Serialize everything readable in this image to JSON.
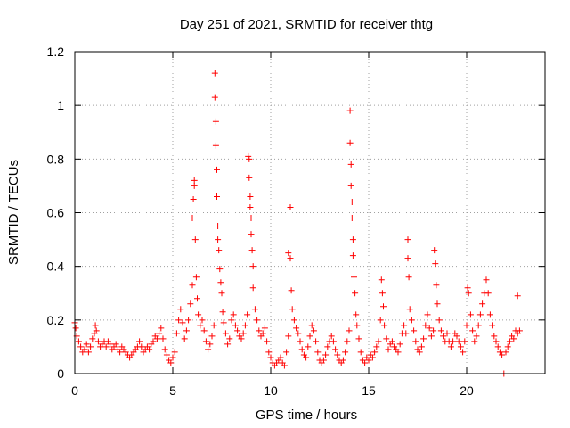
{
  "chart_data": {
    "type": "scatter",
    "title": "Day 251 of 2021, SRMTID for receiver thtg",
    "xlabel": "GPS time / hours",
    "ylabel": "SRMTID / TECUs",
    "xlim": [
      0,
      24
    ],
    "ylim": [
      0,
      1.2
    ],
    "xticks": [
      0,
      5,
      10,
      15,
      20
    ],
    "xtick_labels": [
      "0",
      "5",
      "10",
      "15",
      "20"
    ],
    "yticks": [
      0,
      0.2,
      0.4,
      0.6,
      0.8,
      1,
      1.2
    ],
    "ytick_labels": [
      "0",
      "0.2",
      "0.4",
      "0.6",
      "0.8",
      "1",
      "1.2"
    ],
    "grid": true,
    "marker": "plus",
    "color": "#ff0000",
    "series": [
      {
        "name": "SRMTID",
        "points": [
          [
            0.0,
            0.19
          ],
          [
            0.05,
            0.17
          ],
          [
            0.1,
            0.14
          ],
          [
            0.2,
            0.12
          ],
          [
            0.3,
            0.1
          ],
          [
            0.4,
            0.08
          ],
          [
            0.5,
            0.09
          ],
          [
            0.6,
            0.11
          ],
          [
            0.7,
            0.08
          ],
          [
            0.8,
            0.1
          ],
          [
            0.9,
            0.13
          ],
          [
            1.0,
            0.15
          ],
          [
            1.05,
            0.18
          ],
          [
            1.1,
            0.16
          ],
          [
            1.2,
            0.12
          ],
          [
            1.3,
            0.1
          ],
          [
            1.4,
            0.11
          ],
          [
            1.5,
            0.12
          ],
          [
            1.6,
            0.1
          ],
          [
            1.7,
            0.12
          ],
          [
            1.8,
            0.11
          ],
          [
            1.9,
            0.09
          ],
          [
            2.0,
            0.1
          ],
          [
            2.1,
            0.11
          ],
          [
            2.2,
            0.09
          ],
          [
            2.3,
            0.08
          ],
          [
            2.4,
            0.1
          ],
          [
            2.5,
            0.09
          ],
          [
            2.6,
            0.08
          ],
          [
            2.7,
            0.07
          ],
          [
            2.8,
            0.06
          ],
          [
            2.9,
            0.07
          ],
          [
            3.0,
            0.08
          ],
          [
            3.1,
            0.09
          ],
          [
            3.2,
            0.1
          ],
          [
            3.3,
            0.12
          ],
          [
            3.4,
            0.1
          ],
          [
            3.5,
            0.08
          ],
          [
            3.6,
            0.09
          ],
          [
            3.7,
            0.1
          ],
          [
            3.8,
            0.09
          ],
          [
            3.9,
            0.11
          ],
          [
            4.0,
            0.12
          ],
          [
            4.1,
            0.14
          ],
          [
            4.2,
            0.13
          ],
          [
            4.3,
            0.15
          ],
          [
            4.4,
            0.17
          ],
          [
            4.5,
            0.13
          ],
          [
            4.6,
            0.09
          ],
          [
            4.7,
            0.07
          ],
          [
            4.8,
            0.05
          ],
          [
            4.9,
            0.04
          ],
          [
            5.0,
            0.06
          ],
          [
            5.1,
            0.08
          ],
          [
            5.2,
            0.15
          ],
          [
            5.3,
            0.2
          ],
          [
            5.4,
            0.24
          ],
          [
            5.5,
            0.19
          ],
          [
            5.6,
            0.13
          ],
          [
            5.7,
            0.16
          ],
          [
            5.8,
            0.2
          ],
          [
            5.9,
            0.26
          ],
          [
            6.0,
            0.33
          ],
          [
            6.0,
            0.58
          ],
          [
            6.05,
            0.65
          ],
          [
            6.1,
            0.7
          ],
          [
            6.1,
            0.72
          ],
          [
            6.15,
            0.5
          ],
          [
            6.2,
            0.36
          ],
          [
            6.25,
            0.28
          ],
          [
            6.3,
            0.22
          ],
          [
            6.4,
            0.18
          ],
          [
            6.5,
            0.2
          ],
          [
            6.6,
            0.16
          ],
          [
            6.7,
            0.12
          ],
          [
            6.8,
            0.09
          ],
          [
            6.9,
            0.11
          ],
          [
            7.0,
            0.14
          ],
          [
            7.1,
            0.18
          ],
          [
            7.15,
            1.12
          ],
          [
            7.15,
            1.03
          ],
          [
            7.2,
            0.94
          ],
          [
            7.2,
            0.85
          ],
          [
            7.25,
            0.76
          ],
          [
            7.25,
            0.66
          ],
          [
            7.3,
            0.55
          ],
          [
            7.3,
            0.5
          ],
          [
            7.35,
            0.46
          ],
          [
            7.4,
            0.39
          ],
          [
            7.45,
            0.34
          ],
          [
            7.5,
            0.3
          ],
          [
            7.55,
            0.23
          ],
          [
            7.6,
            0.19
          ],
          [
            7.7,
            0.15
          ],
          [
            7.8,
            0.11
          ],
          [
            7.9,
            0.13
          ],
          [
            8.0,
            0.2
          ],
          [
            8.1,
            0.22
          ],
          [
            8.2,
            0.18
          ],
          [
            8.3,
            0.16
          ],
          [
            8.4,
            0.14
          ],
          [
            8.5,
            0.13
          ],
          [
            8.6,
            0.15
          ],
          [
            8.7,
            0.18
          ],
          [
            8.8,
            0.22
          ],
          [
            8.85,
            0.81
          ],
          [
            8.9,
            0.8
          ],
          [
            8.9,
            0.73
          ],
          [
            8.95,
            0.66
          ],
          [
            8.95,
            0.62
          ],
          [
            9.0,
            0.58
          ],
          [
            9.0,
            0.52
          ],
          [
            9.05,
            0.46
          ],
          [
            9.1,
            0.4
          ],
          [
            9.1,
            0.32
          ],
          [
            9.2,
            0.24
          ],
          [
            9.3,
            0.2
          ],
          [
            9.4,
            0.16
          ],
          [
            9.5,
            0.14
          ],
          [
            9.6,
            0.15
          ],
          [
            9.7,
            0.17
          ],
          [
            9.8,
            0.12
          ],
          [
            9.9,
            0.08
          ],
          [
            10.0,
            0.06
          ],
          [
            10.1,
            0.04
          ],
          [
            10.2,
            0.03
          ],
          [
            10.3,
            0.04
          ],
          [
            10.4,
            0.05
          ],
          [
            10.5,
            0.06
          ],
          [
            10.6,
            0.04
          ],
          [
            10.7,
            0.03
          ],
          [
            10.8,
            0.08
          ],
          [
            10.9,
            0.14
          ],
          [
            10.9,
            0.45
          ],
          [
            11.0,
            0.43
          ],
          [
            11.0,
            0.62
          ],
          [
            11.05,
            0.31
          ],
          [
            11.1,
            0.24
          ],
          [
            11.2,
            0.2
          ],
          [
            11.3,
            0.17
          ],
          [
            11.4,
            0.15
          ],
          [
            11.5,
            0.12
          ],
          [
            11.6,
            0.09
          ],
          [
            11.7,
            0.07
          ],
          [
            11.8,
            0.06
          ],
          [
            11.9,
            0.1
          ],
          [
            12.0,
            0.14
          ],
          [
            12.1,
            0.18
          ],
          [
            12.2,
            0.16
          ],
          [
            12.3,
            0.12
          ],
          [
            12.4,
            0.08
          ],
          [
            12.5,
            0.05
          ],
          [
            12.6,
            0.04
          ],
          [
            12.7,
            0.05
          ],
          [
            12.8,
            0.07
          ],
          [
            12.9,
            0.1
          ],
          [
            13.0,
            0.12
          ],
          [
            13.1,
            0.14
          ],
          [
            13.2,
            0.12
          ],
          [
            13.3,
            0.09
          ],
          [
            13.4,
            0.07
          ],
          [
            13.5,
            0.05
          ],
          [
            13.6,
            0.04
          ],
          [
            13.7,
            0.05
          ],
          [
            13.8,
            0.08
          ],
          [
            13.9,
            0.12
          ],
          [
            14.0,
            0.16
          ],
          [
            14.05,
            0.98
          ],
          [
            14.05,
            0.86
          ],
          [
            14.1,
            0.78
          ],
          [
            14.1,
            0.7
          ],
          [
            14.15,
            0.64
          ],
          [
            14.15,
            0.58
          ],
          [
            14.2,
            0.5
          ],
          [
            14.2,
            0.44
          ],
          [
            14.25,
            0.36
          ],
          [
            14.3,
            0.3
          ],
          [
            14.35,
            0.22
          ],
          [
            14.4,
            0.18
          ],
          [
            14.5,
            0.13
          ],
          [
            14.6,
            0.08
          ],
          [
            14.7,
            0.05
          ],
          [
            14.8,
            0.04
          ],
          [
            14.9,
            0.06
          ],
          [
            15.0,
            0.05
          ],
          [
            15.1,
            0.07
          ],
          [
            15.2,
            0.06
          ],
          [
            15.3,
            0.08
          ],
          [
            15.4,
            0.1
          ],
          [
            15.5,
            0.12
          ],
          [
            15.6,
            0.2
          ],
          [
            15.65,
            0.35
          ],
          [
            15.7,
            0.3
          ],
          [
            15.75,
            0.25
          ],
          [
            15.8,
            0.18
          ],
          [
            15.9,
            0.13
          ],
          [
            16.0,
            0.09
          ],
          [
            16.1,
            0.11
          ],
          [
            16.2,
            0.12
          ],
          [
            16.3,
            0.1
          ],
          [
            16.4,
            0.09
          ],
          [
            16.5,
            0.08
          ],
          [
            16.6,
            0.11
          ],
          [
            16.7,
            0.15
          ],
          [
            16.8,
            0.18
          ],
          [
            16.9,
            0.15
          ],
          [
            17.0,
            0.5
          ],
          [
            17.0,
            0.43
          ],
          [
            17.05,
            0.36
          ],
          [
            17.1,
            0.24
          ],
          [
            17.2,
            0.2
          ],
          [
            17.3,
            0.16
          ],
          [
            17.4,
            0.12
          ],
          [
            17.5,
            0.09
          ],
          [
            17.6,
            0.08
          ],
          [
            17.7,
            0.1
          ],
          [
            17.8,
            0.13
          ],
          [
            17.9,
            0.18
          ],
          [
            18.0,
            0.22
          ],
          [
            18.1,
            0.17
          ],
          [
            18.2,
            0.14
          ],
          [
            18.3,
            0.16
          ],
          [
            18.35,
            0.46
          ],
          [
            18.4,
            0.41
          ],
          [
            18.45,
            0.33
          ],
          [
            18.5,
            0.26
          ],
          [
            18.6,
            0.2
          ],
          [
            18.7,
            0.16
          ],
          [
            18.8,
            0.14
          ],
          [
            18.9,
            0.12
          ],
          [
            19.0,
            0.15
          ],
          [
            19.1,
            0.12
          ],
          [
            19.2,
            0.1
          ],
          [
            19.3,
            0.12
          ],
          [
            19.4,
            0.15
          ],
          [
            19.5,
            0.14
          ],
          [
            19.6,
            0.12
          ],
          [
            19.7,
            0.1
          ],
          [
            19.8,
            0.08
          ],
          [
            19.9,
            0.12
          ],
          [
            20.0,
            0.18
          ],
          [
            20.05,
            0.32
          ],
          [
            20.1,
            0.3
          ],
          [
            20.2,
            0.22
          ],
          [
            20.3,
            0.16
          ],
          [
            20.4,
            0.12
          ],
          [
            20.5,
            0.14
          ],
          [
            20.6,
            0.18
          ],
          [
            20.7,
            0.22
          ],
          [
            20.8,
            0.26
          ],
          [
            20.9,
            0.3
          ],
          [
            21.0,
            0.35
          ],
          [
            21.1,
            0.3
          ],
          [
            21.2,
            0.22
          ],
          [
            21.3,
            0.18
          ],
          [
            21.4,
            0.14
          ],
          [
            21.5,
            0.12
          ],
          [
            21.6,
            0.1
          ],
          [
            21.7,
            0.08
          ],
          [
            21.8,
            0.07
          ],
          [
            21.9,
            0.0
          ],
          [
            22.0,
            0.08
          ],
          [
            22.1,
            0.1
          ],
          [
            22.2,
            0.12
          ],
          [
            22.3,
            0.14
          ],
          [
            22.4,
            0.13
          ],
          [
            22.5,
            0.16
          ],
          [
            22.6,
            0.15
          ],
          [
            22.6,
            0.29
          ],
          [
            22.7,
            0.16
          ]
        ]
      }
    ]
  }
}
